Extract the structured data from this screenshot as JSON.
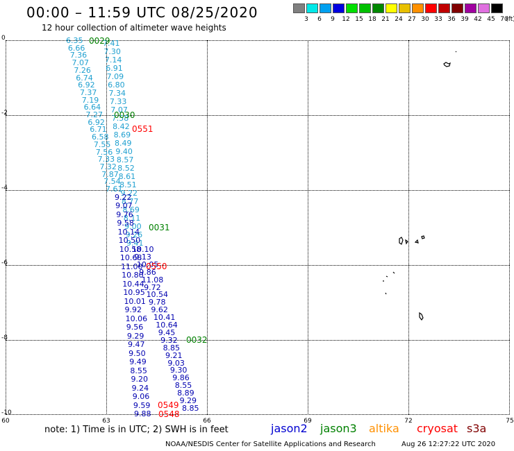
{
  "header": {
    "title": "00:00 – 11:59 UTC 08/25/2020",
    "subtitle": "12 hour collection of altimeter wave heights"
  },
  "legend": {
    "unit_label": "(ft)",
    "bins": [
      {
        "label": "3",
        "color": "#808080"
      },
      {
        "label": "6",
        "color": "#00e8e8"
      },
      {
        "label": "9",
        "color": "#00a0f0"
      },
      {
        "label": "12",
        "color": "#0000e0"
      },
      {
        "label": "15",
        "color": "#00e000"
      },
      {
        "label": "18",
        "color": "#00c000"
      },
      {
        "label": "21",
        "color": "#008800"
      },
      {
        "label": "24",
        "color": "#ffff00"
      },
      {
        "label": "27",
        "color": "#e8c000"
      },
      {
        "label": "30",
        "color": "#ff9000"
      },
      {
        "label": "33",
        "color": "#ff0000"
      },
      {
        "label": "36",
        "color": "#c00000"
      },
      {
        "label": "39",
        "color": "#800000"
      },
      {
        "label": "42",
        "color": "#a000a0"
      },
      {
        "label": "45",
        "color": "#e070e0"
      },
      {
        "label": "70",
        "color": "#000000"
      }
    ]
  },
  "axes": {
    "y_ticks": [
      "0",
      "-2",
      "-4",
      "-6",
      "-8",
      "-10"
    ],
    "x_ticks": [
      "60",
      "63",
      "66",
      "69",
      "72",
      "75"
    ]
  },
  "tracks": {
    "jason3_a": [
      "6.35",
      "6.66",
      "7.36",
      "7.07",
      "7.26",
      "6.74",
      "6.92",
      "7.37",
      "7.19",
      "6.64",
      "7.27",
      "6.92",
      "6.71",
      "6.58",
      "7.55",
      "7.56",
      "7.33",
      "7.32",
      "7.87",
      "7.54",
      "7.61"
    ],
    "jason3_b": [
      "7.41",
      "7.30",
      "7.14",
      "6.91",
      "7.09",
      "6.80",
      "7.34",
      "7.33",
      "7.07",
      "7.58",
      "8.42",
      "8.69",
      "8.49",
      "9.40",
      "8.57",
      "8.52",
      "8.61",
      "8.51",
      "9.22",
      "8.77",
      "8.69",
      "8.11",
      "9.00",
      "9.26",
      "9.41"
    ],
    "jason2_a": [
      "9.22",
      "9.07",
      "9.76",
      "9.58",
      "10.14",
      "10.50",
      "10.58",
      "10.68",
      "11.00",
      "10.80",
      "10.44",
      "10.95",
      "10.01",
      "9.92",
      "10.06",
      "9.56",
      "9.29",
      "9.47",
      "9.50",
      "9.49",
      "8.55",
      "9.20",
      "9.24",
      "9.06",
      "9.59",
      "9.88"
    ],
    "jason2_b": [
      "10.10",
      "9.13",
      "10.05",
      "9.86",
      "11.08",
      "9.72",
      "10.54",
      "9.78",
      "9.62",
      "10.41",
      "10.64",
      "9.45",
      "9.32",
      "8.85",
      "9.21",
      "9.03",
      "9.30",
      "9.86",
      "8.55",
      "8.89",
      "9.29",
      "8.85"
    ]
  },
  "pass_times": [
    {
      "label": "0029",
      "color": "#008000"
    },
    {
      "label": "0030",
      "color": "#008000"
    },
    {
      "label": "0551",
      "color": "#ff0000"
    },
    {
      "label": "0031",
      "color": "#008000"
    },
    {
      "label": "0550",
      "color": "#ff0000"
    },
    {
      "label": "0032",
      "color": "#008000"
    },
    {
      "label": "0549",
      "color": "#ff0000"
    },
    {
      "label": "0548",
      "color": "#ff0000"
    }
  ],
  "footer": {
    "note": "note: 1) Time is in UTC; 2) SWH is in feet",
    "satellites": [
      {
        "label": "jason2",
        "color": "#0000d0"
      },
      {
        "label": "jason3",
        "color": "#008000"
      },
      {
        "label": "altika",
        "color": "#ff9000"
      },
      {
        "label": "cryosat",
        "color": "#ff0000"
      },
      {
        "label": "s3a",
        "color": "#800000"
      }
    ],
    "credit": "NOAA/NESDIS Center for Satellite Applications and Research",
    "timestamp": "Aug 26 12:27:22 UTC 2020"
  }
}
